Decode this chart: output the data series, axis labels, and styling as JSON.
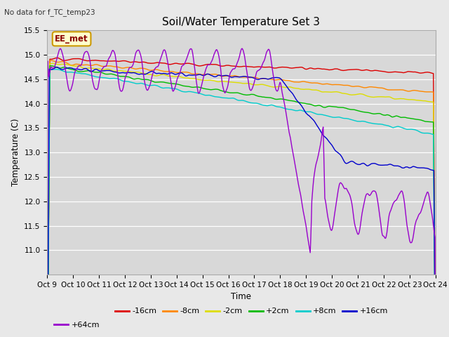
{
  "title": "Soil/Water Temperature Set 3",
  "subtitle": "No data for f_TC_temp23",
  "xlabel": "Time",
  "ylabel": "Temperature (C)",
  "ylim": [
    10.5,
    15.5
  ],
  "yticks": [
    11.0,
    11.5,
    12.0,
    12.5,
    13.0,
    13.5,
    14.0,
    14.5,
    15.0,
    15.5
  ],
  "xtick_labels": [
    "Oct 9",
    "Oct 10",
    "Oct 11",
    "Oct 12",
    "Oct 13",
    "Oct 14",
    "Oct 15",
    "Oct 16",
    "Oct 17",
    "Oct 18",
    "Oct 19",
    "Oct 20",
    "Oct 21",
    "Oct 22",
    "Oct 23",
    "Oct 24"
  ],
  "legend_labels": [
    "-16cm",
    "-8cm",
    "-2cm",
    "+2cm",
    "+8cm",
    "+16cm",
    "+64cm"
  ],
  "line_colors": [
    "#dd0000",
    "#ff8800",
    "#dddd00",
    "#00bb00",
    "#00cccc",
    "#0000cc",
    "#9900cc"
  ],
  "background_color": "#e8e8e8",
  "plot_bg_color": "#d8d8d8",
  "annotation_box": "EE_met",
  "annotation_box_color": "#ffffcc",
  "annotation_box_border": "#cc9900",
  "figsize": [
    6.4,
    4.8
  ],
  "dpi": 100
}
